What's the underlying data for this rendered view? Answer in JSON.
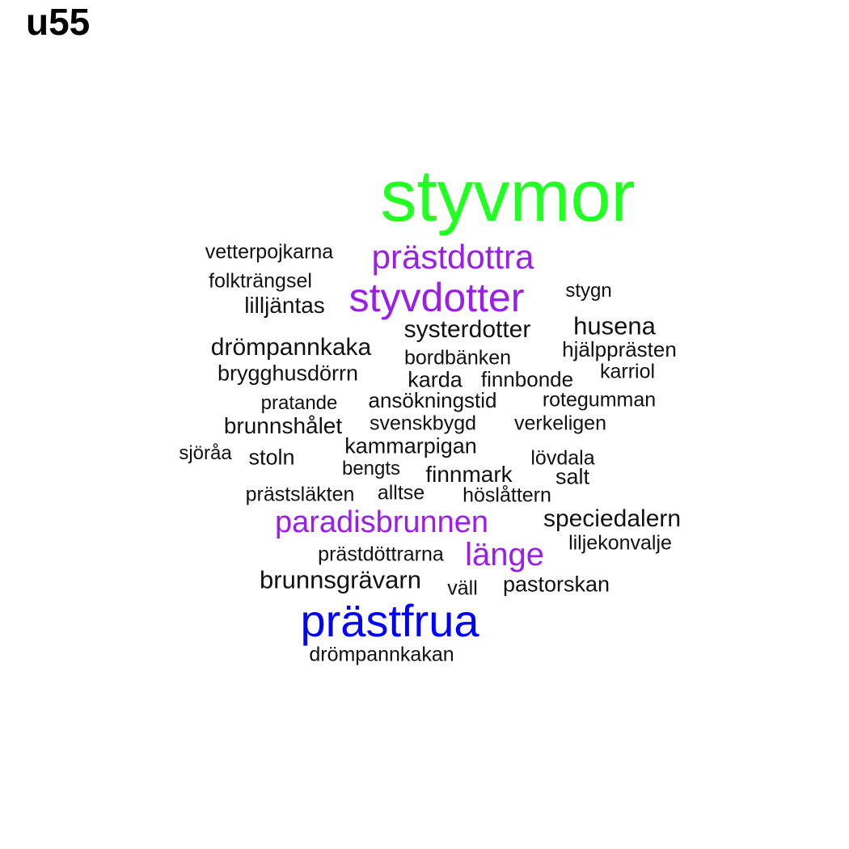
{
  "title": "u55",
  "colors": {
    "green": "#22ff22",
    "purple": "#9a1ee8",
    "blue": "#0000ff",
    "black": "#111111"
  },
  "words": [
    {
      "text": "styvmor",
      "color": "green"
    },
    {
      "text": "prästdottra",
      "color": "purple"
    },
    {
      "text": "styvdotter",
      "color": "purple"
    },
    {
      "text": "prästfrua",
      "color": "blue"
    },
    {
      "text": "paradisbrunnen",
      "color": "purple"
    },
    {
      "text": "länge",
      "color": "purple"
    },
    {
      "text": "vetterpojkarna",
      "color": "black"
    },
    {
      "text": "folkträngsel",
      "color": "black"
    },
    {
      "text": "lilljäntas",
      "color": "black"
    },
    {
      "text": "stygn",
      "color": "black"
    },
    {
      "text": "husena",
      "color": "black"
    },
    {
      "text": "systerdotter",
      "color": "black"
    },
    {
      "text": "drömpannkaka",
      "color": "black"
    },
    {
      "text": "bordbänken",
      "color": "black"
    },
    {
      "text": "hjälpprästen",
      "color": "black"
    },
    {
      "text": "brygghusdörrn",
      "color": "black"
    },
    {
      "text": "karda",
      "color": "black"
    },
    {
      "text": "finnbonde",
      "color": "black"
    },
    {
      "text": "karriol",
      "color": "black"
    },
    {
      "text": "pratande",
      "color": "black"
    },
    {
      "text": "ansökningstid",
      "color": "black"
    },
    {
      "text": "rotegumman",
      "color": "black"
    },
    {
      "text": "brunnshålet",
      "color": "black"
    },
    {
      "text": "svenskbygd",
      "color": "black"
    },
    {
      "text": "verkeligen",
      "color": "black"
    },
    {
      "text": "sjöråa",
      "color": "black"
    },
    {
      "text": "stoln",
      "color": "black"
    },
    {
      "text": "kammarpigan",
      "color": "black"
    },
    {
      "text": "lövdala",
      "color": "black"
    },
    {
      "text": "bengts",
      "color": "black"
    },
    {
      "text": "finnmark",
      "color": "black"
    },
    {
      "text": "salt",
      "color": "black"
    },
    {
      "text": "prästsläkten",
      "color": "black"
    },
    {
      "text": "alltse",
      "color": "black"
    },
    {
      "text": "höslåttern",
      "color": "black"
    },
    {
      "text": "speciedalern",
      "color": "black"
    },
    {
      "text": "liljekonvalje",
      "color": "black"
    },
    {
      "text": "prästdöttrarna",
      "color": "black"
    },
    {
      "text": "brunnsgrävarn",
      "color": "black"
    },
    {
      "text": "väll",
      "color": "black"
    },
    {
      "text": "pastorskan",
      "color": "black"
    },
    {
      "text": "drömpannkakan",
      "color": "black"
    }
  ]
}
